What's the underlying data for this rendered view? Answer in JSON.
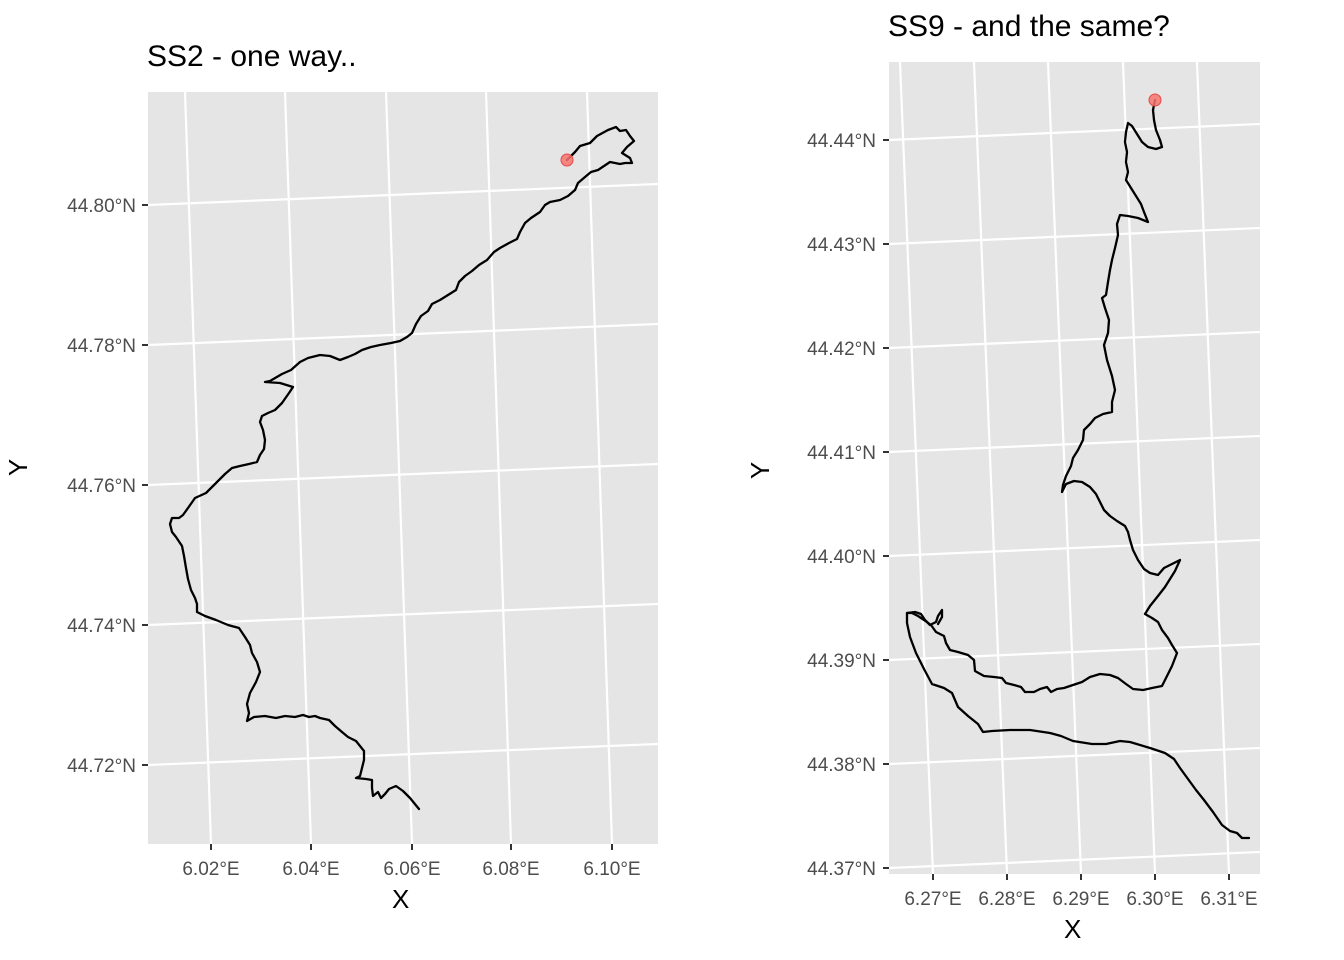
{
  "panels": [
    {
      "title": "SS2 - one way..",
      "xlabel": "X",
      "ylabel": "Y",
      "x_ticks": [
        "6.02°E",
        "6.04°E",
        "6.06°E",
        "6.08°E",
        "6.10°E"
      ],
      "y_ticks": [
        "44.72°N",
        "44.74°N",
        "44.76°N",
        "44.78°N",
        "44.80°N"
      ],
      "start_point": {
        "lon": 6.091,
        "lat": 44.806
      }
    },
    {
      "title": "SS9 - and the same?",
      "xlabel": "X",
      "ylabel": "Y",
      "x_ticks": [
        "6.27°E",
        "6.28°E",
        "6.29°E",
        "6.30°E",
        "6.31°E"
      ],
      "y_ticks": [
        "44.37°N",
        "44.38°N",
        "44.39°N",
        "44.40°N",
        "44.41°N",
        "44.42°N",
        "44.43°N",
        "44.44°N"
      ],
      "start_point": {
        "lon": 6.3,
        "lat": 44.444
      }
    }
  ],
  "colors": {
    "panel_background": "#e5e5e5",
    "grid": "#ffffff",
    "track": "#000000",
    "start_marker": "#f8766d",
    "tick_text": "#4d4d4d"
  }
}
